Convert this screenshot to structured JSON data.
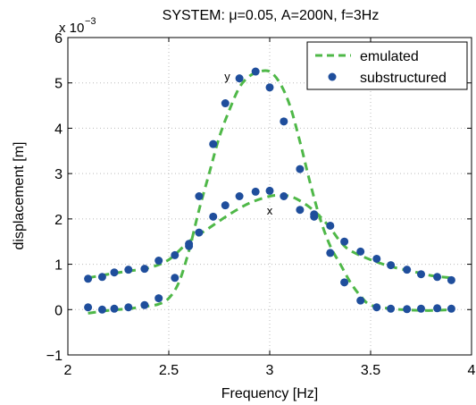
{
  "chart_data": {
    "type": "line",
    "title": "SYSTEM: μ=0.05, A=200N, f=3Hz",
    "xlabel": "Frequency [Hz]",
    "ylabel": "displacement [m]",
    "y_multiplier": {
      "base": "x 10",
      "exponent": "−3"
    },
    "xlim": [
      2,
      4
    ],
    "ylim": [
      -1,
      6
    ],
    "x_ticks": [
      "2",
      "2.5",
      "3",
      "3.5",
      "4"
    ],
    "y_ticks": [
      "−1",
      "0",
      "1",
      "2",
      "3",
      "4",
      "5",
      "6"
    ],
    "grid": true,
    "legend_position": "top-right",
    "colors": {
      "emulated": "#4fb848",
      "substructured": "#1f4e9c"
    },
    "annotations": [
      {
        "text": "y",
        "x": 2.79,
        "y": 5.05
      },
      {
        "text": "x",
        "x": 3.0,
        "y": 2.1
      }
    ],
    "series": [
      {
        "name": "emulated",
        "style": "dashed-line",
        "curves": [
          {
            "x": [
              2.1,
              2.2,
              2.3,
              2.4,
              2.45,
              2.5,
              2.55,
              2.6,
              2.65,
              2.7,
              2.75,
              2.8,
              2.85,
              2.9,
              2.95,
              3.0,
              3.05,
              3.1,
              3.15,
              3.2,
              3.25,
              3.3,
              3.35,
              3.4,
              3.45,
              3.5,
              3.6,
              3.7,
              3.8,
              3.9
            ],
            "y": [
              -0.08,
              -0.02,
              0.02,
              0.08,
              0.12,
              0.25,
              0.6,
              1.3,
              2.2,
              3.0,
              3.8,
              4.4,
              4.9,
              5.15,
              5.25,
              5.25,
              5.0,
              4.5,
              3.7,
              2.8,
              2.0,
              1.4,
              1.0,
              0.6,
              0.3,
              0.1,
              0.02,
              -0.01,
              -0.02,
              0.0
            ]
          },
          {
            "x": [
              2.1,
              2.2,
              2.3,
              2.4,
              2.5,
              2.6,
              2.7,
              2.8,
              2.9,
              3.0,
              3.05,
              3.1,
              3.15,
              3.2,
              3.25,
              3.3,
              3.35,
              3.4,
              3.5,
              3.6,
              3.7,
              3.8,
              3.9
            ],
            "y": [
              0.7,
              0.78,
              0.85,
              0.92,
              1.1,
              1.5,
              1.8,
              2.1,
              2.35,
              2.5,
              2.52,
              2.5,
              2.4,
              2.25,
              2.05,
              1.8,
              1.5,
              1.3,
              1.1,
              0.95,
              0.85,
              0.75,
              0.7
            ]
          }
        ]
      },
      {
        "name": "substructured",
        "style": "markers",
        "curves": [
          {
            "x": [
              2.1,
              2.17,
              2.23,
              2.3,
              2.38,
              2.45,
              2.53,
              2.6,
              2.65,
              2.72,
              2.78,
              2.85,
              2.93,
              3.0,
              3.07,
              3.15,
              3.22,
              3.3,
              3.37,
              3.45,
              3.53,
              3.6,
              3.68,
              3.75,
              3.83,
              3.9
            ],
            "y": [
              0.05,
              0.0,
              0.02,
              0.05,
              0.1,
              0.25,
              0.7,
              1.45,
              2.5,
              3.65,
              4.55,
              5.1,
              5.25,
              4.9,
              4.15,
              3.1,
              2.1,
              1.25,
              0.6,
              0.2,
              0.05,
              0.02,
              0.01,
              0.02,
              0.03,
              0.02
            ]
          },
          {
            "x": [
              2.1,
              2.17,
              2.23,
              2.3,
              2.38,
              2.45,
              2.53,
              2.6,
              2.65,
              2.72,
              2.78,
              2.85,
              2.93,
              3.0,
              3.07,
              3.15,
              3.22,
              3.3,
              3.37,
              3.45,
              3.53,
              3.6,
              3.68,
              3.75,
              3.83,
              3.9
            ],
            "y": [
              0.68,
              0.72,
              0.82,
              0.88,
              0.9,
              1.08,
              1.2,
              1.4,
              1.7,
              2.05,
              2.3,
              2.5,
              2.6,
              2.62,
              2.5,
              2.2,
              2.05,
              1.85,
              1.5,
              1.28,
              1.12,
              0.98,
              0.88,
              0.78,
              0.72,
              0.65
            ]
          }
        ]
      }
    ]
  }
}
